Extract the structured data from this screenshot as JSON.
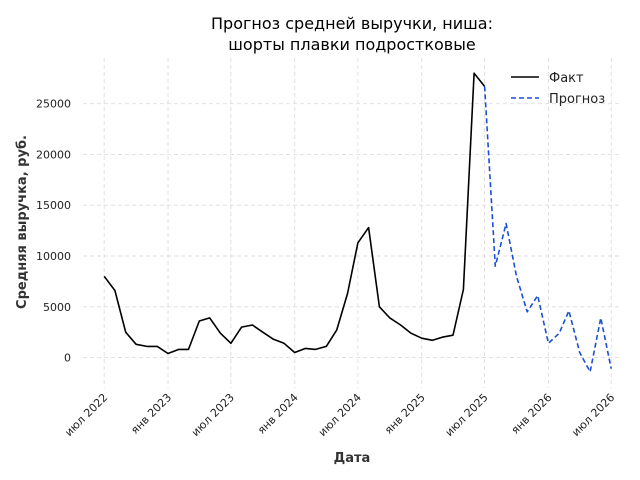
{
  "chart_data": {
    "type": "line",
    "title": [
      "Прогноз средней выручки, ниша:",
      "шорты плавки подростковые"
    ],
    "xlabel": "Дата",
    "ylabel": "Средняя выручка, руб.",
    "ylim": [
      -3000,
      29500
    ],
    "xlim": [
      "2022-05-01",
      "2026-08-01"
    ],
    "grid": true,
    "legend_position": "top-right",
    "x_ticks": [
      {
        "date": "2022-07-01",
        "label": "июл 2022"
      },
      {
        "date": "2023-01-01",
        "label": "янв 2023"
      },
      {
        "date": "2023-07-01",
        "label": "июл 2023"
      },
      {
        "date": "2024-01-01",
        "label": "янв 2024"
      },
      {
        "date": "2024-07-01",
        "label": "июл 2024"
      },
      {
        "date": "2025-01-01",
        "label": "янв 2025"
      },
      {
        "date": "2025-07-01",
        "label": "июл 2025"
      },
      {
        "date": "2026-01-01",
        "label": "янв 2026"
      },
      {
        "date": "2026-07-01",
        "label": "июл 2026"
      }
    ],
    "y_ticks": [
      {
        "value": 0,
        "label": "0"
      },
      {
        "value": 5000,
        "label": "5000"
      },
      {
        "value": 10000,
        "label": "10000"
      },
      {
        "value": 15000,
        "label": "15000"
      },
      {
        "value": 20000,
        "label": "20000"
      },
      {
        "value": 25000,
        "label": "25000"
      }
    ],
    "series": [
      {
        "name": "Факт",
        "color": "#000000",
        "style": "solid",
        "x": [
          "2022-07-01",
          "2022-08-01",
          "2022-09-01",
          "2022-10-01",
          "2022-11-01",
          "2022-12-01",
          "2023-01-01",
          "2023-02-01",
          "2023-03-01",
          "2023-04-01",
          "2023-05-01",
          "2023-06-01",
          "2023-07-01",
          "2023-08-01",
          "2023-09-01",
          "2023-10-01",
          "2023-11-01",
          "2023-12-01",
          "2024-01-01",
          "2024-02-01",
          "2024-03-01",
          "2024-04-01",
          "2024-05-01",
          "2024-06-01",
          "2024-07-01",
          "2024-08-01",
          "2024-09-01",
          "2024-10-01",
          "2024-11-01",
          "2024-12-01",
          "2025-01-01",
          "2025-02-01",
          "2025-03-01",
          "2025-04-01",
          "2025-05-01",
          "2025-06-01",
          "2025-07-01"
        ],
        "y": [
          8000,
          6600,
          2500,
          1300,
          1100,
          1100,
          400,
          800,
          800,
          3600,
          3900,
          2400,
          1400,
          3000,
          3200,
          2500,
          1800,
          1400,
          500,
          900,
          800,
          1100,
          2700,
          6300,
          11300,
          12800,
          5000,
          3900,
          3200,
          2400,
          1900,
          1700,
          2000,
          2200,
          6700,
          28000,
          26700
        ]
      },
      {
        "name": "Прогноз",
        "color": "#1a4fd6",
        "style": "dashed",
        "x": [
          "2025-07-01",
          "2025-08-01",
          "2025-09-01",
          "2025-10-01",
          "2025-11-01",
          "2025-12-01",
          "2026-01-01",
          "2026-02-01",
          "2026-03-01",
          "2026-04-01",
          "2026-05-01",
          "2026-06-01",
          "2026-07-01"
        ],
        "y": [
          26700,
          9000,
          13200,
          8000,
          4500,
          6100,
          1400,
          2400,
          4600,
          500,
          -1400,
          3900,
          -1100
        ]
      }
    ]
  }
}
